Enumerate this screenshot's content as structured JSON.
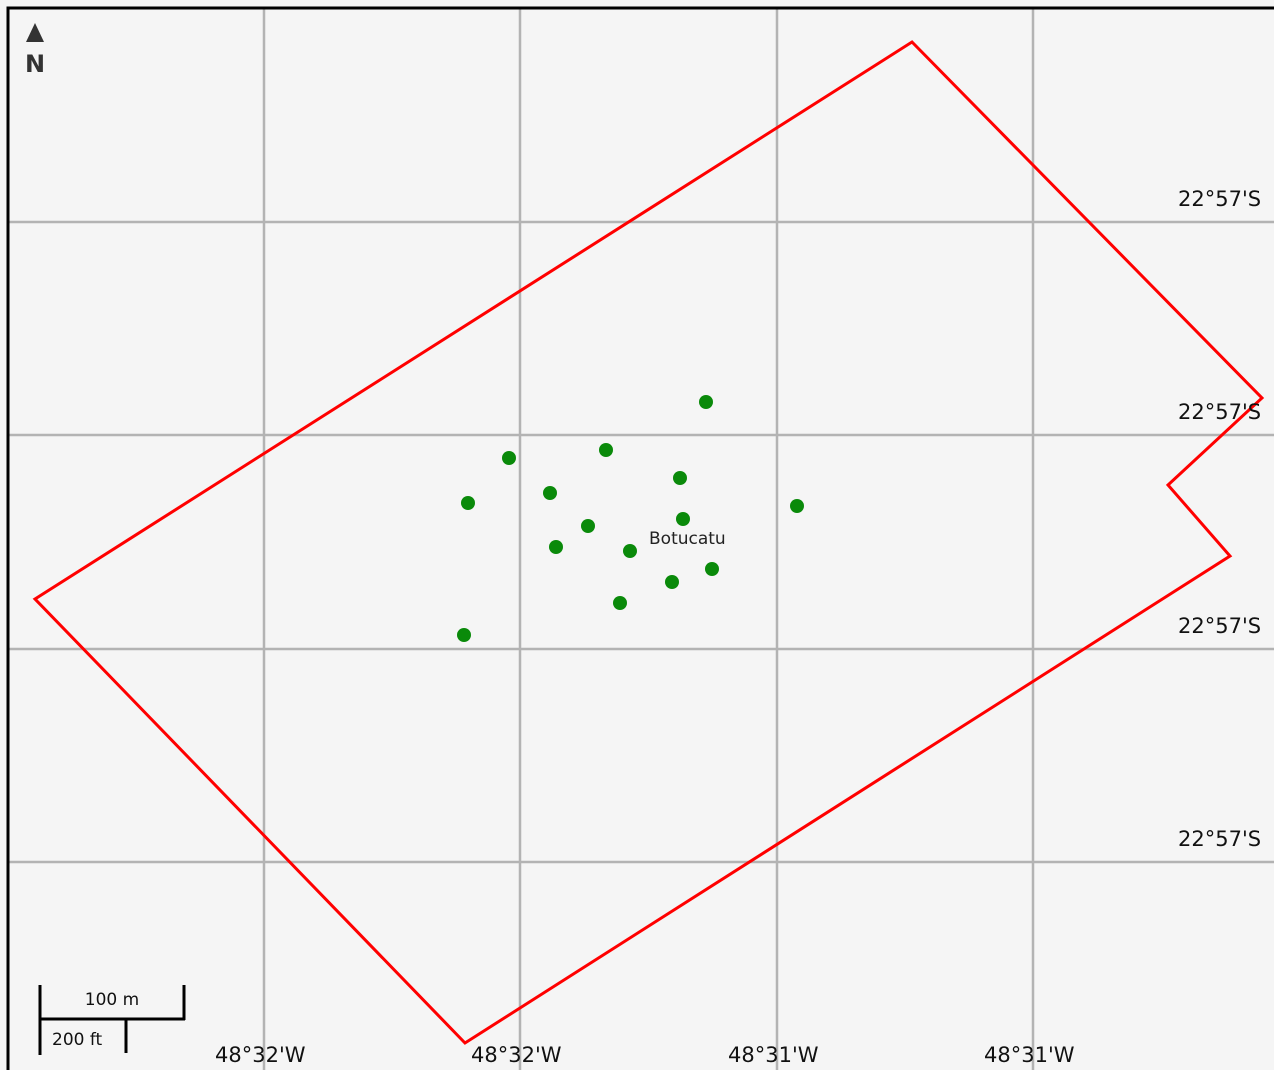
{
  "map": {
    "background_color": "#f5f5f5",
    "grid_color": "#b3b3b3",
    "frame_color": "#000000",
    "north_arrow": {
      "letter": "N",
      "icon": "north-arrow-icon"
    },
    "latitude_labels": [
      "22°57'S",
      "22°57'S",
      "22°57'S",
      "22°57'S"
    ],
    "longitude_labels": [
      "48°32'W",
      "48°32'W",
      "48°31'W",
      "48°31'W"
    ],
    "place_label": "Botucatu",
    "boundary": {
      "color": "#ff0000"
    },
    "points": {
      "color": "#0a8a0a",
      "count": 16
    },
    "scale_bar": {
      "metric_label": "100 m",
      "imperial_label": "200 ft"
    }
  }
}
